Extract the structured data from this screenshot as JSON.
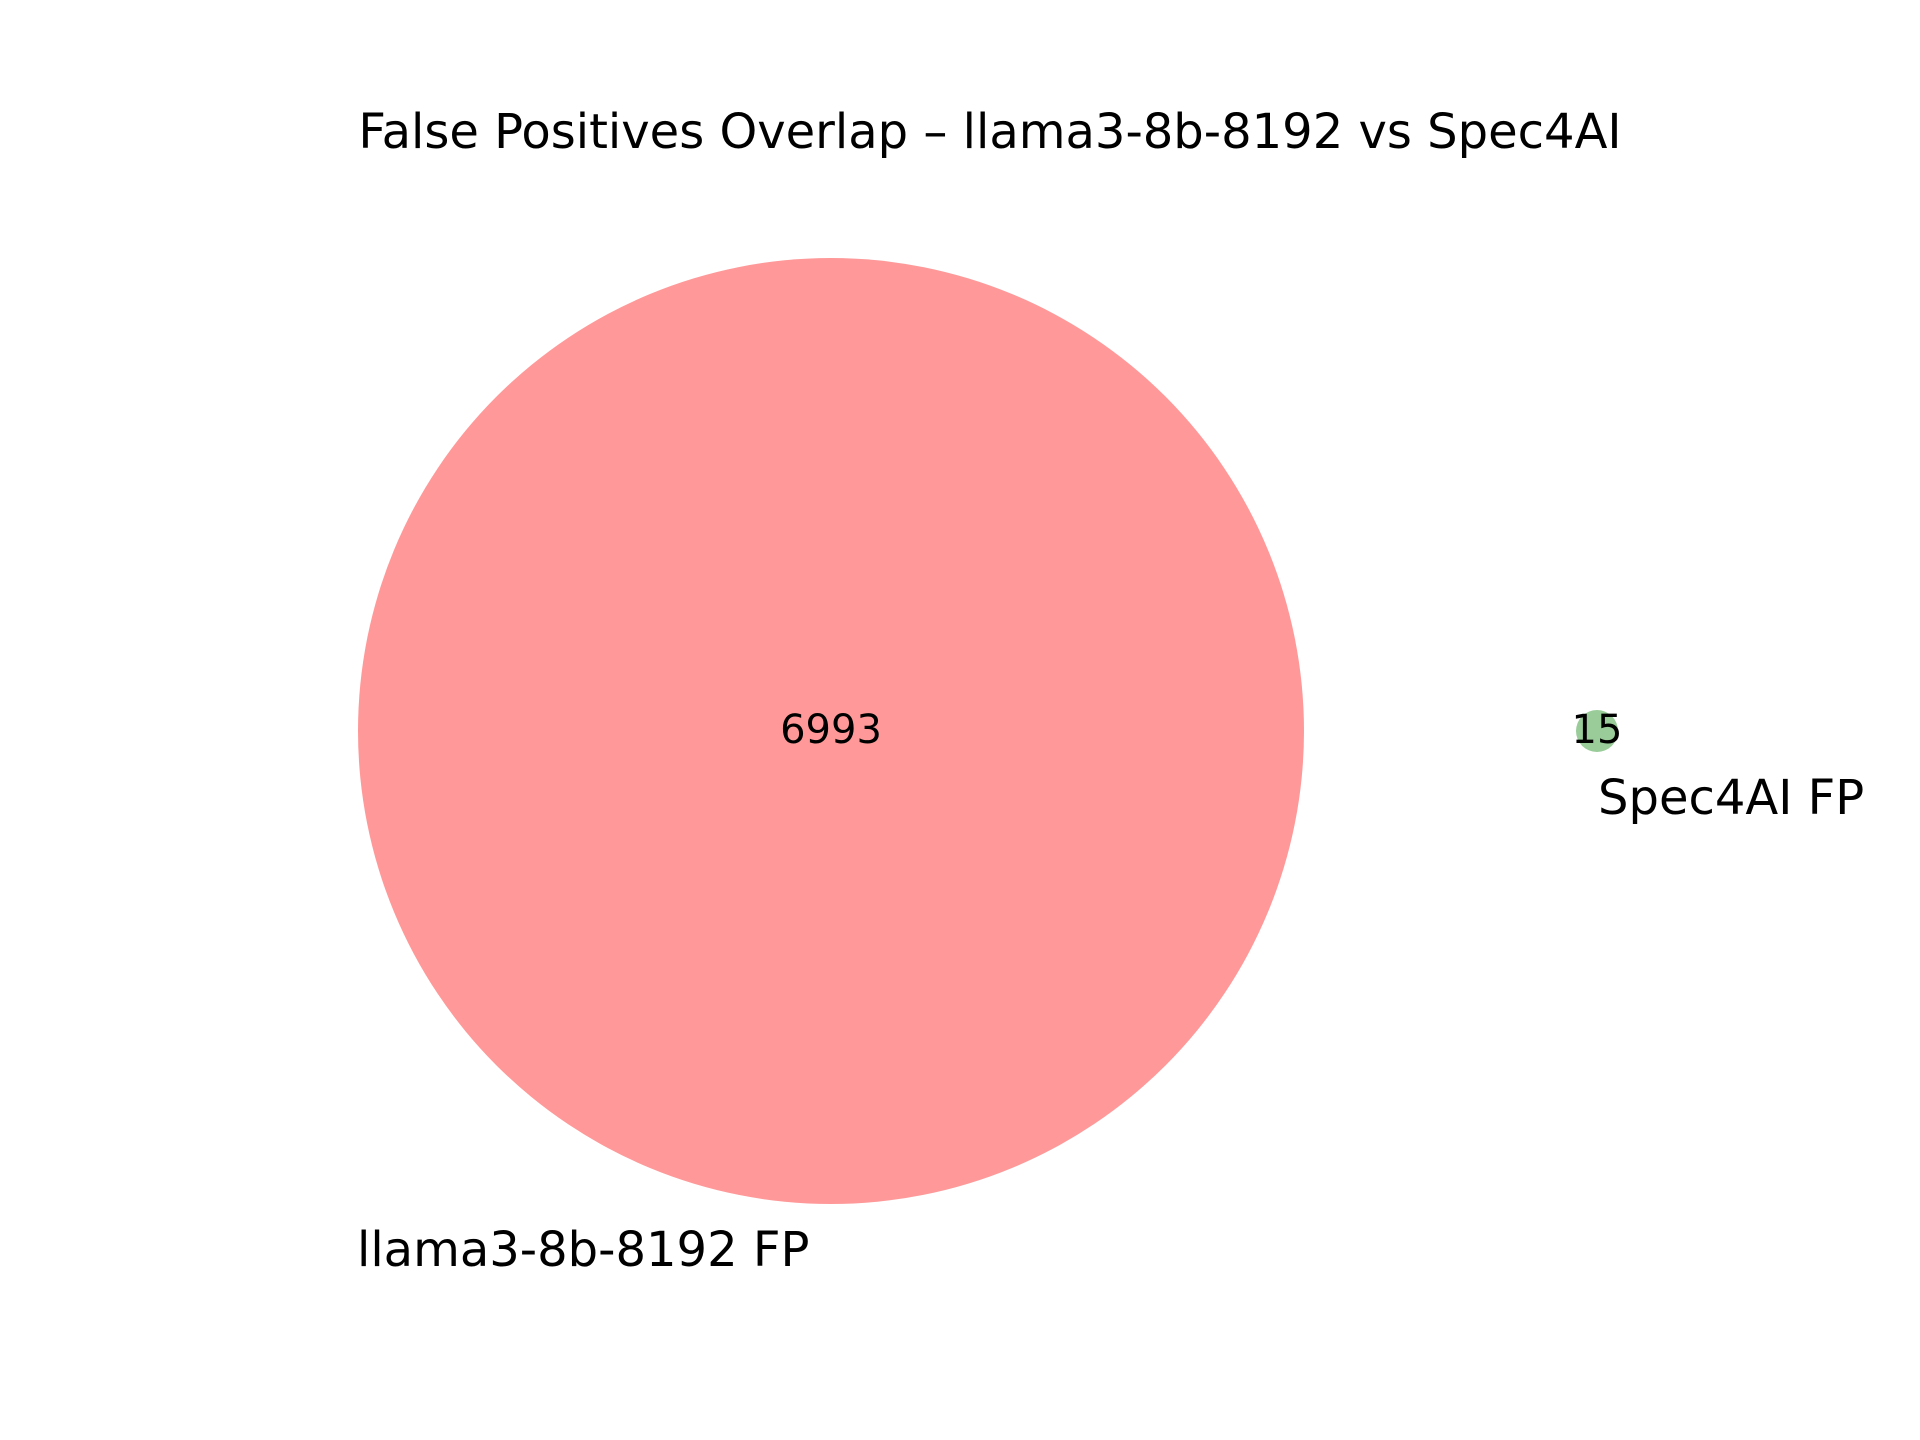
{
  "title": "False Positives Overlap – llama3-8b-8192 vs Spec4AI",
  "sets": [
    {
      "label": "llama3-8b-8192 FP",
      "only_count": "6993",
      "color": "#ff9999"
    },
    {
      "label": "Spec4AI FP",
      "only_count": "15",
      "color": "#99cc99"
    }
  ],
  "intersection_count": "0"
}
